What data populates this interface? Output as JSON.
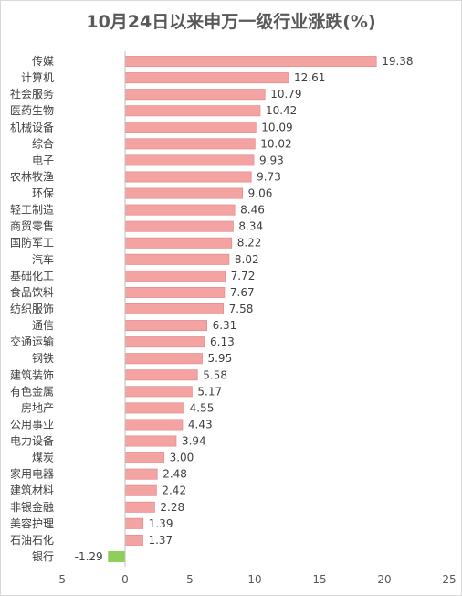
{
  "chart_data": {
    "type": "bar",
    "orientation": "horizontal",
    "title": "10月24日以来申万一级行业涨跌(%)",
    "categories": [
      "传媒",
      "计算机",
      "社会服务",
      "医药生物",
      "机械设备",
      "综合",
      "电子",
      "农林牧渔",
      "环保",
      "轻工制造",
      "商贸零售",
      "国防军工",
      "汽车",
      "基础化工",
      "食品饮料",
      "纺织服饰",
      "通信",
      "交通运输",
      "钢铁",
      "建筑装饰",
      "有色金属",
      "房地产",
      "公用事业",
      "电力设备",
      "煤炭",
      "家用电器",
      "建筑材料",
      "非银金融",
      "美容护理",
      "石油石化",
      "银行"
    ],
    "values": [
      19.38,
      12.61,
      10.79,
      10.42,
      10.09,
      10.02,
      9.93,
      9.73,
      9.06,
      8.46,
      8.34,
      8.22,
      8.02,
      7.72,
      7.67,
      7.58,
      6.31,
      6.13,
      5.95,
      5.58,
      5.17,
      4.55,
      4.43,
      3.94,
      3.0,
      2.48,
      2.42,
      2.28,
      1.39,
      1.37,
      -1.29
    ],
    "value_labels": [
      "19.38",
      "12.61",
      "10.79",
      "10.42",
      "10.09",
      "10.02",
      "9.93",
      "9.73",
      "9.06",
      "8.46",
      "8.34",
      "8.22",
      "8.02",
      "7.72",
      "7.67",
      "7.58",
      "6.31",
      "6.13",
      "5.95",
      "5.58",
      "5.17",
      "4.55",
      "4.43",
      "3.94",
      "3.00",
      "2.48",
      "2.42",
      "2.28",
      "1.39",
      "1.37",
      "-1.29"
    ],
    "xlim": [
      -5,
      25
    ],
    "xticks": [
      -5,
      0,
      5,
      10,
      15,
      20,
      25
    ],
    "xtick_labels": [
      "-5",
      "0",
      "5",
      "10",
      "15",
      "20",
      "25"
    ],
    "grid": false,
    "colors": {
      "positive": "#f4a3a3",
      "positive_edge": "#e58f8f",
      "negative": "#8fce5a",
      "axis": "#bfbfbf"
    }
  }
}
